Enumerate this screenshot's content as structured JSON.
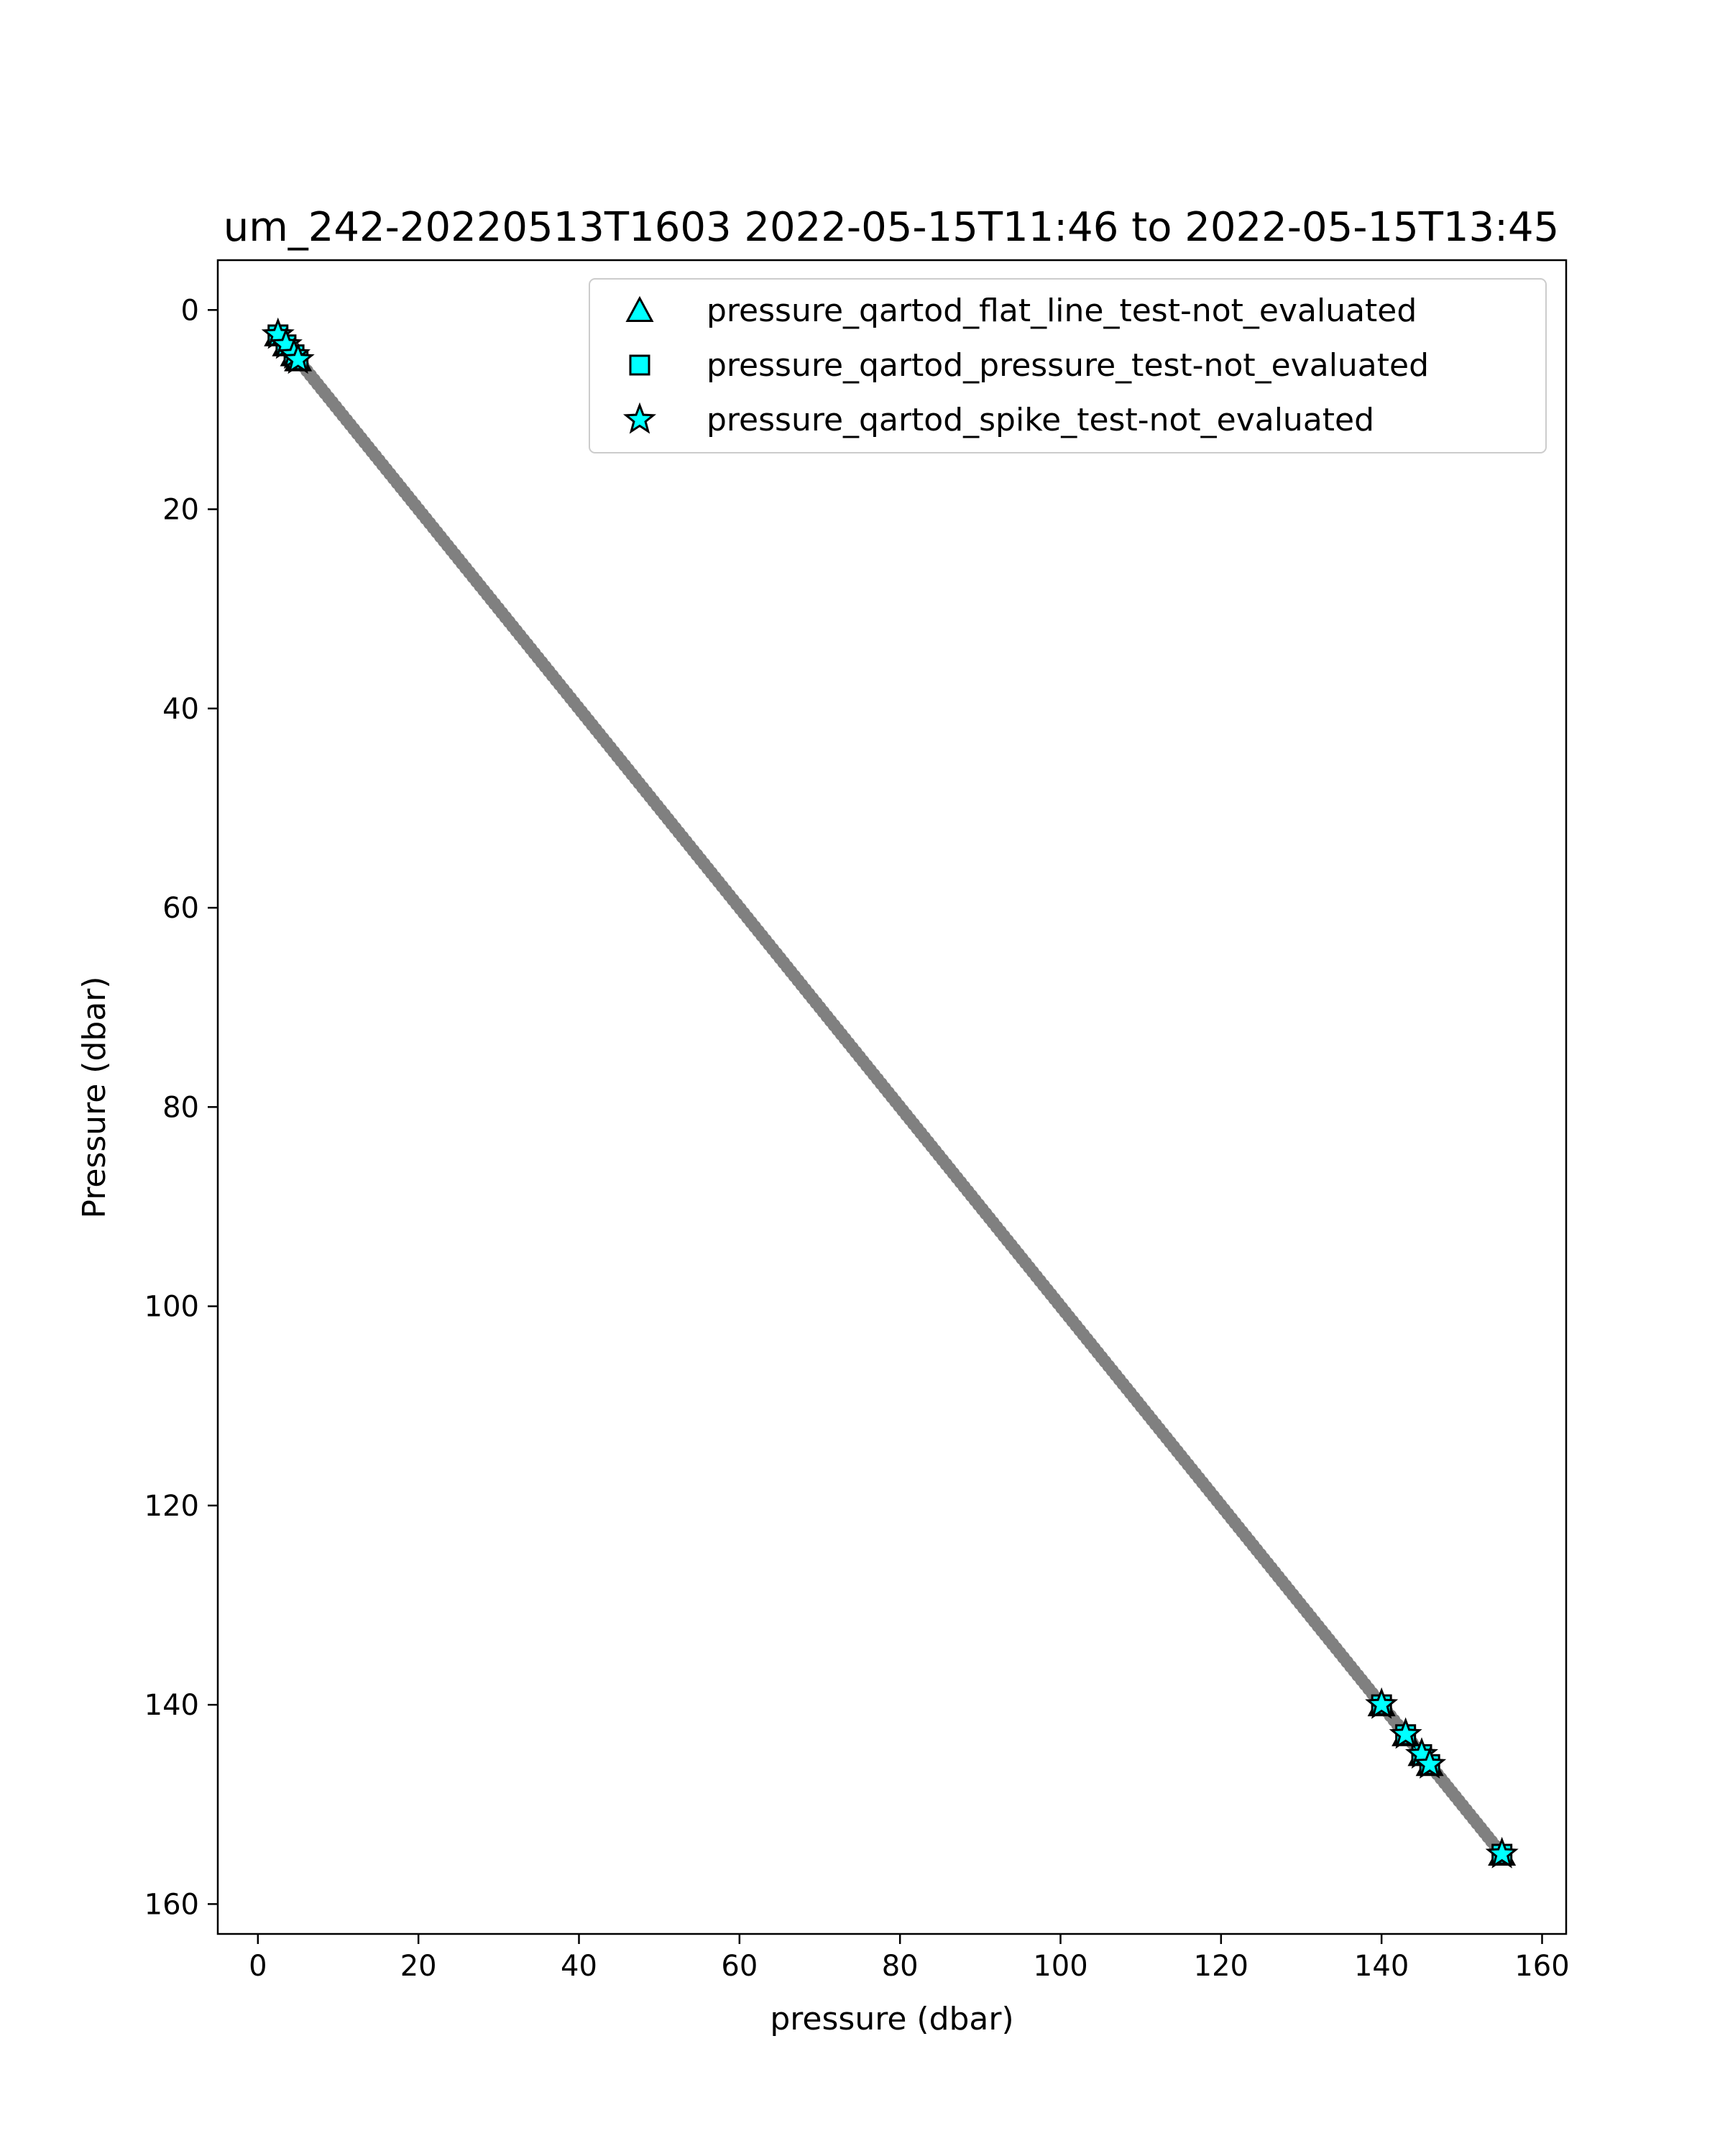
{
  "chart_data": {
    "type": "scatter",
    "title": "um_242-20220513T1603 2022-05-15T11:46 to 2022-05-15T13:45",
    "xlabel": "pressure (dbar)",
    "ylabel": "Pressure (dbar)",
    "xlim": [
      -5,
      163
    ],
    "ylim": [
      163,
      -5
    ],
    "y_inverted": true,
    "x_ticks": [
      0,
      20,
      40,
      60,
      80,
      100,
      120,
      140,
      160
    ],
    "y_ticks": [
      0,
      20,
      40,
      60,
      80,
      100,
      120,
      140,
      160
    ],
    "grid": false,
    "legend_position": "top-right",
    "profile": {
      "color": "#808080",
      "x_range": [
        2.5,
        155.5
      ],
      "y_range": [
        2.5,
        155.5
      ],
      "marker": "circle"
    },
    "series": [
      {
        "name": "pressure_qartod_flat_line_test-not_evaluated",
        "marker": "triangle",
        "color": "#00ffff",
        "x": [
          2.5,
          3.5,
          4.5,
          5.0,
          140.0,
          143.0,
          145.0,
          146.0,
          155.0
        ],
        "y": [
          2.5,
          3.5,
          4.5,
          5.0,
          140.0,
          143.0,
          145.0,
          146.0,
          155.0
        ]
      },
      {
        "name": "pressure_qartod_pressure_test-not_evaluated",
        "marker": "square",
        "color": "#00ffff",
        "x": [
          2.5,
          3.5,
          4.5,
          5.0,
          140.0,
          143.0,
          145.0,
          146.0,
          155.0
        ],
        "y": [
          2.5,
          3.5,
          4.5,
          5.0,
          140.0,
          143.0,
          145.0,
          146.0,
          155.0
        ]
      },
      {
        "name": "pressure_qartod_spike_test-not_evaluated",
        "marker": "star",
        "color": "#00ffff",
        "x": [
          2.5,
          3.5,
          4.5,
          5.0,
          140.0,
          143.0,
          145.0,
          146.0,
          155.0
        ],
        "y": [
          2.5,
          3.5,
          4.5,
          5.0,
          140.0,
          143.0,
          145.0,
          146.0,
          155.0
        ]
      }
    ]
  }
}
